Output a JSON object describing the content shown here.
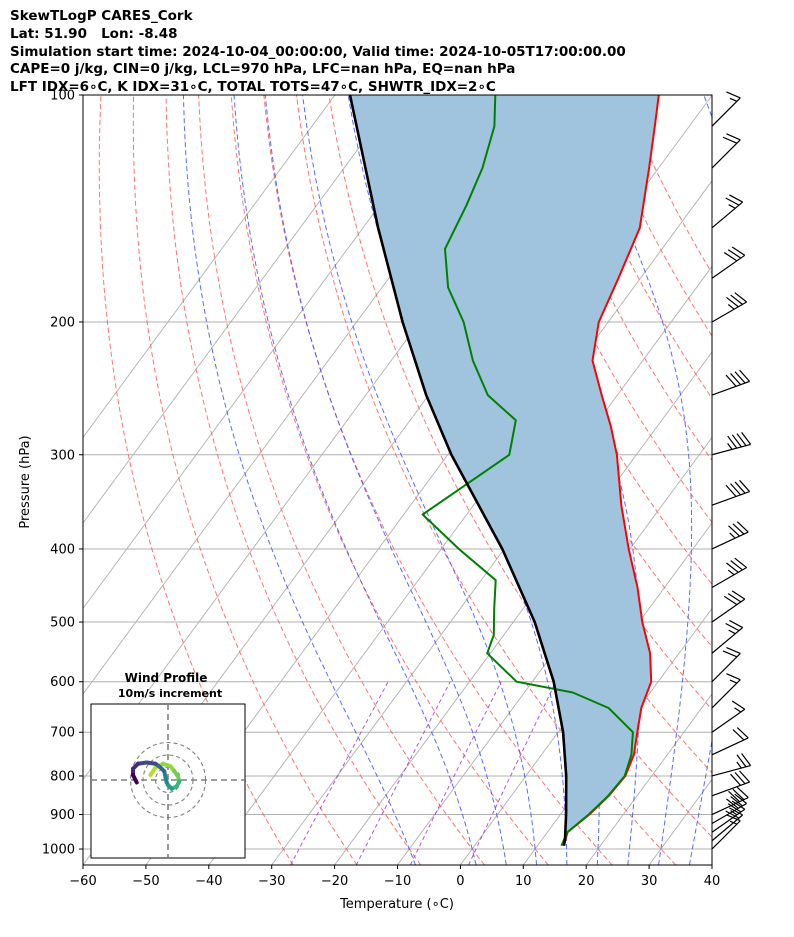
{
  "title_lines": [
    "SkewTLogP CARES_Cork",
    "Lat: 51.90   Lon: -8.48",
    "Simulation start time: 2024-10-04_00:00:00, Valid time: 2024-10-05T17:00:00.00",
    "CAPE=0 j/kg, CIN=0 j/kg, LCL=970 hPa, LFC=nan hPa, EQ=nan hPa",
    "LFT IDX=6∘C, K IDX=31∘C, TOTAL TOTS=47∘C, SHWTR_IDX=2∘C"
  ],
  "chart_data": {
    "type": "skewt-logp",
    "xlabel": "Temperature (∘C)",
    "ylabel": "Pressure (hPa)",
    "xlim": [
      -60,
      40
    ],
    "ylim": [
      1050,
      100
    ],
    "x_ticks": [
      -60,
      -50,
      -40,
      -30,
      -20,
      -10,
      0,
      10,
      20,
      30,
      40
    ],
    "y_ticks": [
      1000,
      900,
      800,
      700,
      600,
      500,
      400,
      300,
      200,
      100
    ],
    "temperature_profile": {
      "color": "#ff0000",
      "points": [
        [
          990,
          14.2
        ],
        [
          950,
          13.2
        ],
        [
          900,
          14.6
        ],
        [
          850,
          15.5
        ],
        [
          800,
          15.8
        ],
        [
          750,
          14.7
        ],
        [
          700,
          12.6
        ],
        [
          650,
          10.4
        ],
        [
          600,
          8.9
        ],
        [
          550,
          5.4
        ],
        [
          500,
          0.5
        ],
        [
          450,
          -4.3
        ],
        [
          400,
          -10.2
        ],
        [
          350,
          -16.5
        ],
        [
          300,
          -23.1
        ],
        [
          275,
          -27.4
        ],
        [
          250,
          -32.5
        ],
        [
          225,
          -38.0
        ],
        [
          200,
          -41.5
        ],
        [
          175,
          -43.5
        ],
        [
          150,
          -46.0
        ],
        [
          125,
          -51.5
        ],
        [
          110,
          -55.5
        ],
        [
          100,
          -58.5
        ]
      ]
    },
    "dewpoint_profile": {
      "color": "#008000",
      "points": [
        [
          990,
          13.8
        ],
        [
          950,
          13.2
        ],
        [
          900,
          14.5
        ],
        [
          850,
          15.4
        ],
        [
          800,
          15.7
        ],
        [
          750,
          14.3
        ],
        [
          700,
          11.9
        ],
        [
          650,
          5.2
        ],
        [
          620,
          -2.3
        ],
        [
          600,
          -12.5
        ],
        [
          550,
          -20.5
        ],
        [
          520,
          -21.6
        ],
        [
          480,
          -24.6
        ],
        [
          440,
          -27.7
        ],
        [
          400,
          -37.2
        ],
        [
          360,
          -47.0
        ],
        [
          300,
          -40.2
        ],
        [
          270,
          -43.2
        ],
        [
          250,
          -50.6
        ],
        [
          225,
          -57.0
        ],
        [
          200,
          -63.0
        ],
        [
          180,
          -69.5
        ],
        [
          160,
          -74.5
        ],
        [
          140,
          -76.2
        ],
        [
          125,
          -78.0
        ],
        [
          110,
          -81.0
        ],
        [
          100,
          -84.5
        ]
      ]
    },
    "parcel_profile": {
      "color": "#000000",
      "points": [
        [
          990,
          14.2
        ],
        [
          970,
          13.6
        ],
        [
          900,
          10.9
        ],
        [
          800,
          6.4
        ],
        [
          700,
          0.8
        ],
        [
          600,
          -6.6
        ],
        [
          500,
          -16.6
        ],
        [
          400,
          -30.3
        ],
        [
          300,
          -49.4
        ],
        [
          250,
          -60.4
        ],
        [
          200,
          -72.7
        ],
        [
          150,
          -87.6
        ],
        [
          100,
          -107.6
        ]
      ]
    },
    "shading": {
      "between": [
        "parcel_profile",
        "temperature_profile"
      ],
      "color": "#a0c4de"
    },
    "isotherms": {
      "values": [
        -110,
        -100,
        -90,
        -80,
        -70,
        -60,
        -50,
        -40,
        -30,
        -20,
        -10,
        0,
        10,
        20,
        30,
        40
      ],
      "color": "#b0b0b0"
    },
    "dry_adiabats": {
      "surface_temps_c": [
        -30,
        -20,
        -10,
        0,
        10,
        20,
        30,
        40,
        50,
        60,
        70,
        80,
        90,
        100,
        110,
        120,
        130
      ],
      "color": "#ff5a5a"
    },
    "moist_adiabats": {
      "surface_temps_c": [
        -10,
        0,
        5,
        10,
        15,
        20,
        25,
        30,
        35
      ],
      "color": "#3c50ff"
    },
    "mixing_ratio_lines": {
      "color": "#9b30c8"
    },
    "wind_barbs": [
      {
        "p": 1000,
        "speed_kt": 15,
        "dir": 225
      },
      {
        "p": 975,
        "speed_kt": 20,
        "dir": 230
      },
      {
        "p": 950,
        "speed_kt": 25,
        "dir": 235
      },
      {
        "p": 925,
        "speed_kt": 30,
        "dir": 240
      },
      {
        "p": 900,
        "speed_kt": 30,
        "dir": 245
      },
      {
        "p": 850,
        "speed_kt": 30,
        "dir": 250
      },
      {
        "p": 800,
        "speed_kt": 25,
        "dir": 255
      },
      {
        "p": 750,
        "speed_kt": 20,
        "dir": 245
      },
      {
        "p": 700,
        "speed_kt": 15,
        "dir": 235
      },
      {
        "p": 650,
        "speed_kt": 15,
        "dir": 225
      },
      {
        "p": 600,
        "speed_kt": 20,
        "dir": 225
      },
      {
        "p": 550,
        "speed_kt": 25,
        "dir": 230
      },
      {
        "p": 500,
        "speed_kt": 30,
        "dir": 235
      },
      {
        "p": 450,
        "speed_kt": 35,
        "dir": 240
      },
      {
        "p": 400,
        "speed_kt": 35,
        "dir": 245
      },
      {
        "p": 350,
        "speed_kt": 40,
        "dir": 250
      },
      {
        "p": 300,
        "speed_kt": 45,
        "dir": 255
      },
      {
        "p": 250,
        "speed_kt": 40,
        "dir": 250
      },
      {
        "p": 200,
        "speed_kt": 35,
        "dir": 240
      },
      {
        "p": 175,
        "speed_kt": 30,
        "dir": 235
      },
      {
        "p": 150,
        "speed_kt": 25,
        "dir": 230
      },
      {
        "p": 125,
        "speed_kt": 20,
        "dir": 225
      },
      {
        "p": 110,
        "speed_kt": 15,
        "dir": 225
      }
    ],
    "hodograph": {
      "title": "Wind Profile",
      "subtitle": "10m/s increment",
      "ring_step_ms": 10,
      "rings": [
        10,
        20,
        30
      ],
      "points_uv": [
        [
          -14,
          -4
        ],
        [
          -10,
          -10
        ],
        [
          -4,
          -13
        ],
        [
          2,
          -11
        ],
        [
          5,
          -7
        ],
        [
          8,
          -3
        ],
        [
          9,
          1
        ],
        [
          7,
          5
        ],
        [
          3,
          7
        ],
        [
          0,
          4
        ],
        [
          -1,
          2
        ],
        [
          -2,
          -2
        ],
        [
          -3,
          -7
        ],
        [
          -6,
          -10
        ],
        [
          -10,
          -13
        ],
        [
          -17,
          -14
        ],
        [
          -24,
          -13
        ],
        [
          -28,
          -9
        ],
        [
          -28,
          -4
        ],
        [
          -25,
          2
        ]
      ]
    }
  }
}
